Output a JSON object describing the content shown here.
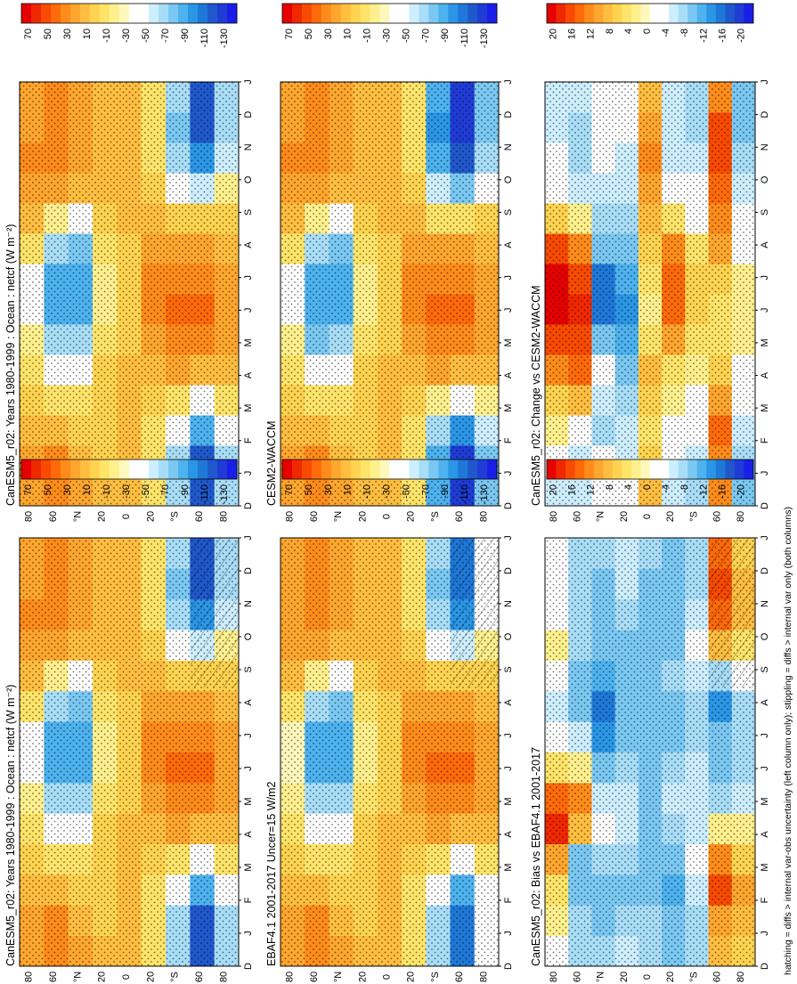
{
  "figure": {
    "footnote": "hatching = diffs > internal var-obs uncertainty (left column only); stippling = diffs > internal var only (both columns)"
  },
  "colorbars": {
    "main": {
      "labels": [
        "70",
        "50",
        "30",
        "10",
        "-10",
        "-30",
        "-50",
        "-70",
        "-90",
        "-110",
        "-130"
      ],
      "colors": [
        "#e60000",
        "#f02800",
        "#f84a00",
        "#ff6a0a",
        "#ff8c1a",
        "#ffa62e",
        "#ffbe40",
        "#ffd350",
        "#ffe46a",
        "#fff08e",
        "#fff8bc",
        "#ffffff",
        "#ffffff",
        "#cdeeff",
        "#a8ddf7",
        "#7ac8f2",
        "#4db2ee",
        "#2b96e6",
        "#1f78d8",
        "#2058cc",
        "#1f3cd6",
        "#1a1ee6"
      ]
    },
    "diff": {
      "labels": [
        "20",
        "16",
        "12",
        "8",
        "4",
        "0",
        "-4",
        "-8",
        "-12",
        "-16",
        "-20"
      ],
      "colors": [
        "#e60000",
        "#f02800",
        "#f84a00",
        "#ff6a0a",
        "#ff8c1a",
        "#ffa62e",
        "#ffbe40",
        "#ffd350",
        "#ffe46a",
        "#fff08e",
        "#fff8bc",
        "#ffffff",
        "#ffffff",
        "#cdeeff",
        "#a8ddf7",
        "#7ac8f2",
        "#4db2ee",
        "#2b96e6",
        "#1f78d8",
        "#2058cc",
        "#1f3cd6",
        "#1a1ee6"
      ]
    }
  },
  "axes": {
    "latitude_ticks": [
      "80",
      "60",
      "°N",
      "20",
      "0",
      "20",
      "°S",
      "60",
      "80"
    ],
    "month_ticks": [
      "D",
      "J",
      "F",
      "M",
      "A",
      "M",
      "J",
      "J",
      "A",
      "S",
      "O",
      "N",
      "D",
      "J"
    ]
  },
  "panels": [
    {
      "id": "top-left",
      "title": "CanESM5_r02: Years 1980-1999 : Ocean : netcf (W m⁻²)",
      "colorbar": "main",
      "hatching": true
    },
    {
      "id": "top-right",
      "title": "CanESM5_r02: Years 1980-1999 : Ocean : netcf (W m⁻²)",
      "colorbar": "main",
      "hatching": false
    },
    {
      "id": "mid-left",
      "title": "EBAF4.1 2001-2017 Uncer=15 W/m2",
      "colorbar": "main",
      "hatching": true
    },
    {
      "id": "mid-right",
      "title": "CESM2-WACCM",
      "colorbar": "main",
      "hatching": false
    },
    {
      "id": "bot-left",
      "title": "CanESM5_r02: Bias vs EBAF4.1 2001-2017",
      "colorbar": "diff",
      "hatching": true
    },
    {
      "id": "bot-right",
      "title": "CanESM5_r02: Change vs CESM2-WACCM",
      "colorbar": "diff",
      "hatching": false
    }
  ],
  "chart_data": [
    {
      "type": "heatmap",
      "title": "CanESM5_r02: Years 1980-1999 : Ocean : netcf (W m⁻²)",
      "xlabel": "",
      "ylabel": "",
      "x_categories": [
        "D",
        "J",
        "F",
        "M",
        "A",
        "M",
        "J",
        "J",
        "A",
        "S",
        "O",
        "N",
        "D",
        "J"
      ],
      "y_categories": [
        "80N",
        "60N",
        "40N",
        "20N",
        "0",
        "20S",
        "40S",
        "60S",
        "80S"
      ],
      "colorbar_range": [
        -130,
        70
      ],
      "values": [
        [
          20,
          20,
          15,
          5,
          -5,
          -20,
          -30,
          -30,
          -10,
          10,
          20,
          25,
          20,
          20
        ],
        [
          30,
          25,
          10,
          -10,
          -40,
          -60,
          -80,
          -80,
          -60,
          -20,
          20,
          30,
          30,
          30
        ],
        [
          20,
          15,
          5,
          -5,
          -30,
          -60,
          -80,
          -80,
          -70,
          -30,
          10,
          20,
          20,
          20
        ],
        [
          10,
          5,
          5,
          5,
          0,
          -10,
          -20,
          -20,
          -10,
          5,
          10,
          10,
          10,
          10
        ],
        [
          10,
          10,
          10,
          10,
          10,
          5,
          5,
          5,
          5,
          10,
          10,
          10,
          10,
          10
        ],
        [
          -10,
          -10,
          -5,
          0,
          10,
          20,
          25,
          25,
          20,
          10,
          0,
          -10,
          -10,
          -10
        ],
        [
          -60,
          -60,
          -40,
          -10,
          20,
          30,
          35,
          30,
          20,
          0,
          -30,
          -60,
          -70,
          -60
        ],
        [
          -110,
          -110,
          -80,
          -40,
          10,
          30,
          35,
          30,
          20,
          0,
          -50,
          -90,
          -110,
          -110
        ],
        [
          -60,
          -60,
          -40,
          -10,
          10,
          20,
          20,
          20,
          10,
          0,
          -20,
          -50,
          -60,
          -60
        ]
      ]
    },
    {
      "type": "heatmap",
      "title": "CanESM5_r02: Years 1980-1999 : Ocean : netcf (W m⁻²)",
      "xlabel": "",
      "ylabel": "",
      "x_categories": [
        "D",
        "J",
        "F",
        "M",
        "A",
        "M",
        "J",
        "J",
        "A",
        "S",
        "O",
        "N",
        "D",
        "J"
      ],
      "y_categories": [
        "80N",
        "60N",
        "40N",
        "20N",
        "0",
        "20S",
        "40S",
        "60S",
        "80S"
      ],
      "colorbar_range": [
        -130,
        70
      ],
      "values": [
        [
          20,
          20,
          15,
          5,
          -5,
          -20,
          -30,
          -30,
          -10,
          10,
          20,
          25,
          20,
          20
        ],
        [
          30,
          25,
          10,
          -10,
          -40,
          -60,
          -80,
          -80,
          -60,
          -20,
          20,
          30,
          30,
          30
        ],
        [
          20,
          15,
          5,
          -5,
          -30,
          -60,
          -80,
          -80,
          -70,
          -30,
          10,
          20,
          20,
          20
        ],
        [
          10,
          5,
          5,
          5,
          0,
          -10,
          -20,
          -20,
          -10,
          5,
          10,
          10,
          10,
          10
        ],
        [
          10,
          10,
          10,
          10,
          10,
          5,
          5,
          5,
          5,
          10,
          10,
          10,
          10,
          10
        ],
        [
          -10,
          -10,
          -5,
          0,
          10,
          20,
          25,
          25,
          20,
          10,
          0,
          -10,
          -10,
          -10
        ],
        [
          -60,
          -60,
          -40,
          -10,
          20,
          30,
          35,
          30,
          20,
          0,
          -30,
          -60,
          -70,
          -60
        ],
        [
          -110,
          -110,
          -80,
          -40,
          10,
          30,
          35,
          30,
          20,
          0,
          -50,
          -90,
          -110,
          -110
        ],
        [
          -60,
          -60,
          -40,
          -10,
          10,
          20,
          20,
          20,
          10,
          0,
          -20,
          -50,
          -60,
          -60
        ]
      ]
    },
    {
      "type": "heatmap",
      "title": "EBAF4.1 2001-2017 Uncer=15 W/m2",
      "xlabel": "",
      "ylabel": "",
      "x_categories": [
        "D",
        "J",
        "F",
        "M",
        "A",
        "M",
        "J",
        "J",
        "A",
        "S",
        "O",
        "N",
        "D",
        "J"
      ],
      "y_categories": [
        "80N",
        "60N",
        "40N",
        "20N",
        "0",
        "20S",
        "40S",
        "60S",
        "80S"
      ],
      "colorbar_range": [
        -130,
        70
      ],
      "values": [
        [
          20,
          20,
          15,
          5,
          -5,
          -15,
          -25,
          -25,
          -10,
          10,
          20,
          20,
          20,
          20
        ],
        [
          30,
          25,
          10,
          -10,
          -40,
          -60,
          -80,
          -80,
          -60,
          -20,
          20,
          30,
          30,
          30
        ],
        [
          20,
          15,
          5,
          -5,
          -30,
          -60,
          -80,
          -80,
          -70,
          -30,
          10,
          20,
          20,
          20
        ],
        [
          10,
          5,
          5,
          5,
          0,
          -10,
          -20,
          -20,
          -10,
          5,
          10,
          10,
          10,
          10
        ],
        [
          10,
          10,
          10,
          10,
          10,
          5,
          5,
          5,
          5,
          10,
          10,
          10,
          10,
          10
        ],
        [
          -10,
          -10,
          -5,
          0,
          10,
          20,
          25,
          25,
          20,
          10,
          0,
          -10,
          -10,
          -10
        ],
        [
          -60,
          -60,
          -40,
          -10,
          20,
          30,
          35,
          30,
          20,
          0,
          -30,
          -60,
          -70,
          -60
        ],
        [
          -100,
          -100,
          -80,
          -40,
          10,
          30,
          35,
          30,
          20,
          0,
          -50,
          -90,
          -100,
          -100
        ],
        [
          -40,
          -40,
          -30,
          -10,
          10,
          20,
          20,
          20,
          10,
          0,
          -20,
          -40,
          -40,
          -40
        ]
      ]
    },
    {
      "type": "heatmap",
      "title": "CESM2-WACCM",
      "xlabel": "",
      "ylabel": "",
      "x_categories": [
        "D",
        "J",
        "F",
        "M",
        "A",
        "M",
        "J",
        "J",
        "A",
        "S",
        "O",
        "N",
        "D",
        "J"
      ],
      "y_categories": [
        "80N",
        "60N",
        "40N",
        "20N",
        "0",
        "20S",
        "40S",
        "60S",
        "80S"
      ],
      "colorbar_range": [
        -130,
        70
      ],
      "values": [
        [
          20,
          20,
          15,
          5,
          -5,
          -20,
          -30,
          -30,
          -10,
          10,
          20,
          25,
          20,
          20
        ],
        [
          30,
          25,
          10,
          -10,
          -40,
          -70,
          -80,
          -80,
          -60,
          -20,
          20,
          30,
          30,
          30
        ],
        [
          20,
          15,
          5,
          -5,
          -30,
          -60,
          -80,
          -80,
          -70,
          -30,
          10,
          20,
          20,
          20
        ],
        [
          10,
          5,
          5,
          5,
          0,
          -10,
          -20,
          -20,
          -10,
          5,
          10,
          10,
          10,
          10
        ],
        [
          10,
          10,
          10,
          10,
          10,
          5,
          5,
          5,
          5,
          10,
          10,
          10,
          10,
          10
        ],
        [
          -10,
          -10,
          -5,
          0,
          10,
          20,
          25,
          25,
          20,
          10,
          0,
          -10,
          -10,
          -10
        ],
        [
          -80,
          -80,
          -60,
          -20,
          20,
          30,
          35,
          30,
          20,
          -10,
          -50,
          -80,
          -90,
          -80
        ],
        [
          -120,
          -120,
          -90,
          -40,
          10,
          30,
          35,
          30,
          20,
          -10,
          -70,
          -110,
          -120,
          -120
        ],
        [
          -70,
          -70,
          -50,
          -20,
          10,
          20,
          20,
          20,
          10,
          0,
          -30,
          -60,
          -70,
          -70
        ]
      ]
    },
    {
      "type": "heatmap",
      "title": "CanESM5_r02: Bias vs EBAF4.1 2001-2017",
      "xlabel": "",
      "ylabel": "",
      "x_categories": [
        "D",
        "J",
        "F",
        "M",
        "A",
        "M",
        "J",
        "J",
        "A",
        "S",
        "O",
        "N",
        "D",
        "J"
      ],
      "y_categories": [
        "80N",
        "60N",
        "40N",
        "20N",
        "0",
        "20S",
        "40S",
        "60S",
        "80S"
      ],
      "colorbar_range": [
        -20,
        20
      ],
      "values": [
        [
          0,
          2,
          4,
          10,
          18,
          14,
          4,
          0,
          -4,
          -2,
          2,
          0,
          0,
          0
        ],
        [
          -6,
          -6,
          -8,
          -8,
          8,
          12,
          2,
          -4,
          -8,
          -8,
          -6,
          -6,
          -6,
          -6
        ],
        [
          -6,
          -8,
          -8,
          -6,
          0,
          -4,
          -8,
          -12,
          -14,
          -10,
          -8,
          -8,
          -8,
          -6
        ],
        [
          -4,
          -6,
          -8,
          -6,
          -4,
          -4,
          -6,
          -8,
          -8,
          -8,
          -8,
          -6,
          -4,
          -4
        ],
        [
          -6,
          -6,
          -8,
          -8,
          -8,
          -8,
          -8,
          -8,
          -8,
          -8,
          -8,
          -8,
          -8,
          -6
        ],
        [
          -8,
          -8,
          -10,
          -8,
          -6,
          -4,
          -6,
          -8,
          -8,
          -6,
          -8,
          -8,
          -8,
          -8
        ],
        [
          -6,
          -6,
          -4,
          -2,
          -4,
          -4,
          -4,
          -6,
          -6,
          -4,
          -2,
          -4,
          -6,
          -6
        ],
        [
          8,
          10,
          16,
          12,
          2,
          -6,
          -8,
          -8,
          -12,
          -6,
          8,
          14,
          16,
          14
        ],
        [
          6,
          8,
          10,
          6,
          2,
          -4,
          -6,
          -6,
          -6,
          -2,
          4,
          8,
          8,
          6
        ]
      ]
    },
    {
      "type": "heatmap",
      "title": "CanESM5_r02: Change vs CESM2-WACCM",
      "xlabel": "",
      "ylabel": "",
      "x_categories": [
        "D",
        "J",
        "F",
        "M",
        "A",
        "M",
        "J",
        "J",
        "A",
        "S",
        "O",
        "N",
        "D",
        "J"
      ],
      "y_categories": [
        "80N",
        "60N",
        "40N",
        "20N",
        "0",
        "20S",
        "40S",
        "60S",
        "80S"
      ],
      "colorbar_range": [
        -20,
        20
      ],
      "values": [
        [
          -4,
          -2,
          2,
          6,
          12,
          16,
          20,
          20,
          16,
          6,
          0,
          -2,
          -4,
          -4
        ],
        [
          -4,
          -4,
          0,
          8,
          14,
          16,
          18,
          16,
          12,
          2,
          -4,
          -6,
          -6,
          -4
        ],
        [
          0,
          -2,
          -6,
          -4,
          -2,
          -8,
          -14,
          -14,
          -8,
          -6,
          -4,
          -2,
          0,
          0
        ],
        [
          -2,
          -4,
          -4,
          -6,
          -8,
          -10,
          -12,
          -10,
          -8,
          -6,
          -4,
          -4,
          -2,
          -2
        ],
        [
          8,
          6,
          4,
          6,
          8,
          4,
          2,
          4,
          6,
          8,
          10,
          12,
          10,
          8
        ],
        [
          -4,
          -2,
          0,
          2,
          4,
          10,
          14,
          14,
          12,
          4,
          -2,
          -4,
          -4,
          -4
        ],
        [
          -6,
          -4,
          -2,
          0,
          2,
          4,
          6,
          6,
          4,
          0,
          -2,
          -4,
          -6,
          -6
        ],
        [
          12,
          12,
          14,
          10,
          6,
          4,
          4,
          6,
          10,
          12,
          14,
          16,
          16,
          12
        ],
        [
          -8,
          -6,
          -4,
          -2,
          0,
          2,
          2,
          2,
          0,
          -2,
          -4,
          -6,
          -8,
          -8
        ]
      ]
    }
  ]
}
